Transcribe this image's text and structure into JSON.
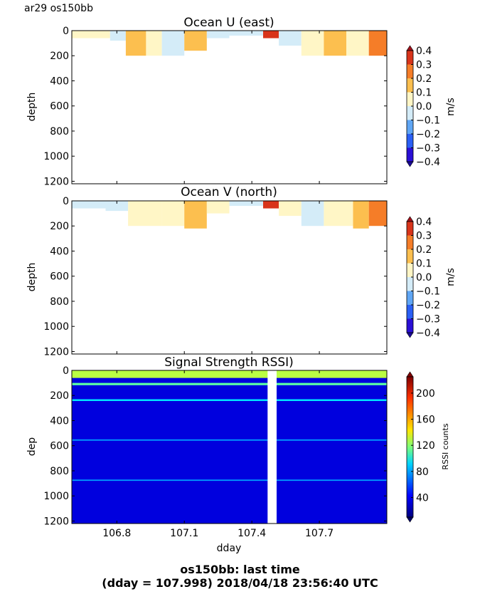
{
  "header": {
    "cruise_label": "ar29 os150bb"
  },
  "footer": {
    "line1": "os150bb: last time",
    "line2": "(dday = 107.998) 2018/04/18 23:56:40 UTC"
  },
  "chart_data": [
    {
      "type": "heatmap",
      "title": "Ocean U (east)",
      "xlabel": "",
      "ylabel": "depth",
      "xlim": [
        106.6,
        108.0
      ],
      "ylim": [
        1220,
        0
      ],
      "yticks": [
        0,
        200,
        400,
        600,
        800,
        1000,
        1200
      ],
      "colorbar": {
        "label": "m/s",
        "ticks": [
          0.4,
          0.3,
          0.2,
          0.1,
          0.0,
          -0.1,
          -0.2,
          -0.3,
          -0.4
        ],
        "tick_labels": [
          "0.4",
          "0.3",
          "0.2",
          "0.1",
          "0.0",
          "−0.1",
          "−0.2",
          "−0.3",
          "−0.4"
        ],
        "range": [
          -0.4,
          0.4
        ],
        "levels": [
          "#2a0fd6",
          "#2a5ff5",
          "#5fa6f5",
          "#d4ecf8",
          "#fff6c6",
          "#fcbf4f",
          "#f57d28",
          "#d8341a"
        ]
      },
      "segments": [
        {
          "x": [
            106.6,
            106.69
          ],
          "depth": 60,
          "value": 0.05
        },
        {
          "x": [
            106.69,
            106.77
          ],
          "depth": 60,
          "value": 0.02
        },
        {
          "x": [
            106.77,
            106.84
          ],
          "depth": 80,
          "value": -0.05
        },
        {
          "x": [
            106.84,
            106.93
          ],
          "depth": 200,
          "value": 0.15
        },
        {
          "x": [
            106.93,
            107.0
          ],
          "depth": 200,
          "value": 0.05
        },
        {
          "x": [
            107.0,
            107.1
          ],
          "depth": 200,
          "value": -0.05
        },
        {
          "x": [
            107.1,
            107.2
          ],
          "depth": 160,
          "value": 0.15
        },
        {
          "x": [
            107.2,
            107.3
          ],
          "depth": 60,
          "value": -0.05
        },
        {
          "x": [
            107.3,
            107.45
          ],
          "depth": 40,
          "value": -0.05
        },
        {
          "x": [
            107.45,
            107.52
          ],
          "depth": 60,
          "value": 0.35
        },
        {
          "x": [
            107.52,
            107.62
          ],
          "depth": 120,
          "value": -0.05
        },
        {
          "x": [
            107.62,
            107.72
          ],
          "depth": 200,
          "value": 0.05
        },
        {
          "x": [
            107.72,
            107.82
          ],
          "depth": 200,
          "value": 0.15
        },
        {
          "x": [
            107.82,
            107.92
          ],
          "depth": 200,
          "value": 0.05
        },
        {
          "x": [
            107.92,
            108.0
          ],
          "depth": 200,
          "value": 0.25
        }
      ]
    },
    {
      "type": "heatmap",
      "title": "Ocean V (north)",
      "xlabel": "",
      "ylabel": "depth",
      "xlim": [
        106.6,
        108.0
      ],
      "ylim": [
        1220,
        0
      ],
      "yticks": [
        0,
        200,
        400,
        600,
        800,
        1000,
        1200
      ],
      "colorbar": {
        "label": "m/s",
        "ticks": [
          0.4,
          0.3,
          0.2,
          0.1,
          0.0,
          -0.1,
          -0.2,
          -0.3,
          -0.4
        ],
        "tick_labels": [
          "0.4",
          "0.3",
          "0.2",
          "0.1",
          "0.0",
          "−0.1",
          "−0.2",
          "−0.3",
          "−0.4"
        ],
        "range": [
          -0.4,
          0.4
        ],
        "levels": [
          "#2a0fd6",
          "#2a5ff5",
          "#5fa6f5",
          "#d4ecf8",
          "#fff6c6",
          "#fcbf4f",
          "#f57d28",
          "#d8341a"
        ]
      },
      "segments": [
        {
          "x": [
            106.6,
            106.75
          ],
          "depth": 60,
          "value": -0.05
        },
        {
          "x": [
            106.75,
            106.85
          ],
          "depth": 80,
          "value": -0.1
        },
        {
          "x": [
            106.85,
            107.0
          ],
          "depth": 200,
          "value": 0.02
        },
        {
          "x": [
            107.0,
            107.1
          ],
          "depth": 200,
          "value": 0.05
        },
        {
          "x": [
            107.1,
            107.2
          ],
          "depth": 220,
          "value": 0.15
        },
        {
          "x": [
            107.2,
            107.3
          ],
          "depth": 100,
          "value": 0.05
        },
        {
          "x": [
            107.3,
            107.45
          ],
          "depth": 40,
          "value": -0.05
        },
        {
          "x": [
            107.45,
            107.52
          ],
          "depth": 60,
          "value": 0.35
        },
        {
          "x": [
            107.52,
            107.62
          ],
          "depth": 120,
          "value": 0.02
        },
        {
          "x": [
            107.62,
            107.72
          ],
          "depth": 200,
          "value": -0.05
        },
        {
          "x": [
            107.72,
            107.85
          ],
          "depth": 200,
          "value": 0.05
        },
        {
          "x": [
            107.85,
            107.92
          ],
          "depth": 220,
          "value": 0.15
        },
        {
          "x": [
            107.92,
            108.0
          ],
          "depth": 200,
          "value": 0.28
        }
      ]
    },
    {
      "type": "heatmap",
      "title": "Signal Strength RSSI)",
      "xlabel": "dday",
      "ylabel": "dep",
      "xlim": [
        106.6,
        108.0
      ],
      "ylim": [
        1220,
        0
      ],
      "xticks": [
        106.8,
        107.1,
        107.4,
        107.7
      ],
      "xtick_labels": [
        "106.8",
        "107.1",
        "107.4",
        "107.7"
      ],
      "yticks": [
        0,
        200,
        400,
        600,
        800,
        1000,
        1200
      ],
      "colorbar": {
        "label": "RSSI counts",
        "ticks": [
          200,
          160,
          120,
          80,
          40
        ],
        "tick_labels": [
          "200",
          "160",
          "120",
          "80",
          "40"
        ],
        "range": [
          10,
          225
        ]
      },
      "background_counts": 30,
      "bands": [
        {
          "depth": 0,
          "thickness": 60,
          "counts": 130
        },
        {
          "depth": 100,
          "thickness": 18,
          "counts": 110
        },
        {
          "depth": 230,
          "thickness": 14,
          "counts": 85
        },
        {
          "depth": 550,
          "thickness": 10,
          "counts": 70
        },
        {
          "depth": 870,
          "thickness": 10,
          "counts": 70
        }
      ],
      "gap": {
        "x": [
          107.47,
          107.51
        ]
      }
    }
  ]
}
